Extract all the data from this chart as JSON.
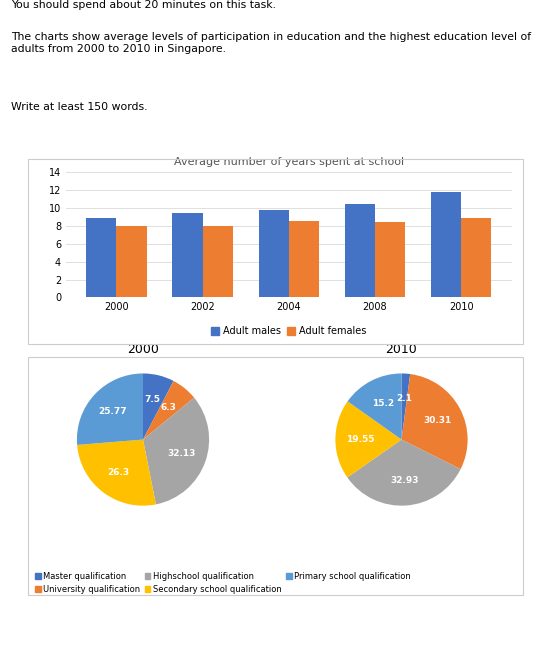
{
  "text_header_1": "You should spend about 20 minutes on this task.",
  "text_header_2": "The charts show average levels of participation in education and the highest education level of\nadults from 2000 to 2010 in Singapore.",
  "text_header_3": "Write at least 150 words.",
  "bar_title": "Average number of years spent at school",
  "bar_years": [
    2000,
    2002,
    2004,
    2008,
    2010
  ],
  "bar_males": [
    8.9,
    9.4,
    9.7,
    10.4,
    11.7
  ],
  "bar_females": [
    8.0,
    8.0,
    8.55,
    8.4,
    8.9
  ],
  "bar_color_male": "#4472C4",
  "bar_color_female": "#ED7D31",
  "bar_ylim": [
    0,
    14
  ],
  "bar_yticks": [
    0,
    2,
    4,
    6,
    8,
    10,
    12,
    14
  ],
  "bar_legend_male": "Adult males",
  "bar_legend_female": "Adult females",
  "pie2000_title": "2000",
  "pie2010_title": "2010",
  "pie2000_values": [
    7.5,
    6.3,
    32.13,
    26.3,
    25.77
  ],
  "pie2010_values": [
    2.1,
    30.31,
    32.93,
    19.55,
    15.2
  ],
  "pie2000_labels": [
    "7.5",
    "6.3",
    "32.13",
    "26.3",
    "25.77"
  ],
  "pie2010_labels": [
    "2.1",
    "30.31",
    "32.93",
    "19.55",
    "15.2"
  ],
  "pie_colors": [
    "#4472C4",
    "#ED7D31",
    "#A5A5A5",
    "#FFC000",
    "#5B9BD5"
  ],
  "pie_legend": [
    "Master qualification",
    "University qualification",
    "Highschool qualification",
    "Secondary school qualification",
    "Primary school qualification"
  ],
  "legend_colors": [
    "#4472C4",
    "#ED7D31",
    "#A5A5A5",
    "#FFC000",
    "#5B9BD5"
  ],
  "background_color": "#FFFFFF"
}
